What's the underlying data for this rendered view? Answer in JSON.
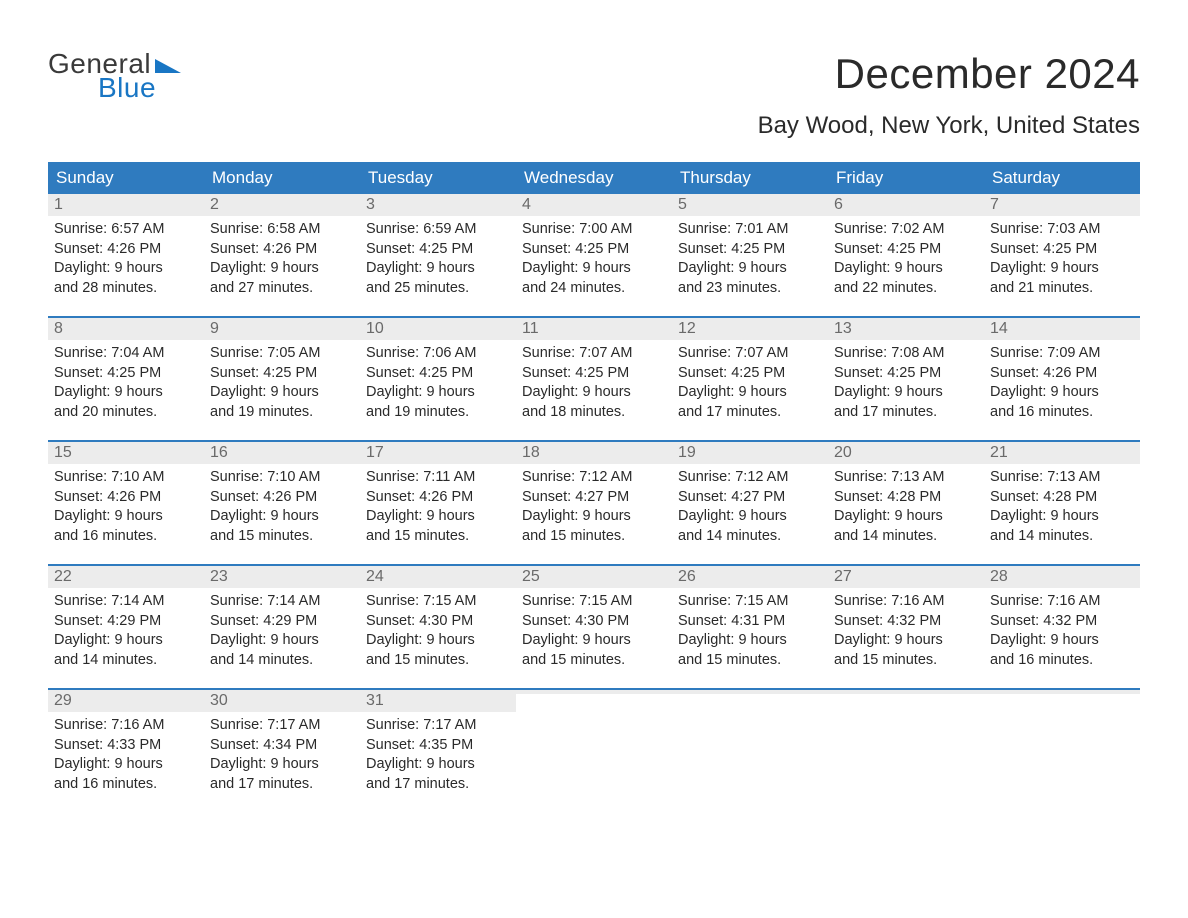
{
  "logo": {
    "text_general": "General",
    "text_blue": "Blue",
    "flag_color": "#1976c4"
  },
  "title": "December 2024",
  "location": "Bay Wood, New York, United States",
  "colors": {
    "header_bg": "#2f7bbf",
    "header_text": "#ffffff",
    "daynum_bg": "#ececec",
    "daynum_text": "#6a6a6a",
    "week_border": "#2f7bbf",
    "body_text": "#2a2a2a",
    "logo_general": "#3a3a3a",
    "logo_blue": "#1976c4",
    "background": "#ffffff"
  },
  "typography": {
    "title_fontsize": 42,
    "location_fontsize": 24,
    "dayheader_fontsize": 17,
    "daynum_fontsize": 16,
    "body_fontsize": 14.5,
    "logo_fontsize": 28
  },
  "day_headers": [
    "Sunday",
    "Monday",
    "Tuesday",
    "Wednesday",
    "Thursday",
    "Friday",
    "Saturday"
  ],
  "weeks": [
    [
      {
        "n": "1",
        "sr": "6:57 AM",
        "ss": "4:26 PM",
        "dl1": "Daylight: 9 hours",
        "dl2": "and 28 minutes."
      },
      {
        "n": "2",
        "sr": "6:58 AM",
        "ss": "4:26 PM",
        "dl1": "Daylight: 9 hours",
        "dl2": "and 27 minutes."
      },
      {
        "n": "3",
        "sr": "6:59 AM",
        "ss": "4:25 PM",
        "dl1": "Daylight: 9 hours",
        "dl2": "and 25 minutes."
      },
      {
        "n": "4",
        "sr": "7:00 AM",
        "ss": "4:25 PM",
        "dl1": "Daylight: 9 hours",
        "dl2": "and 24 minutes."
      },
      {
        "n": "5",
        "sr": "7:01 AM",
        "ss": "4:25 PM",
        "dl1": "Daylight: 9 hours",
        "dl2": "and 23 minutes."
      },
      {
        "n": "6",
        "sr": "7:02 AM",
        "ss": "4:25 PM",
        "dl1": "Daylight: 9 hours",
        "dl2": "and 22 minutes."
      },
      {
        "n": "7",
        "sr": "7:03 AM",
        "ss": "4:25 PM",
        "dl1": "Daylight: 9 hours",
        "dl2": "and 21 minutes."
      }
    ],
    [
      {
        "n": "8",
        "sr": "7:04 AM",
        "ss": "4:25 PM",
        "dl1": "Daylight: 9 hours",
        "dl2": "and 20 minutes."
      },
      {
        "n": "9",
        "sr": "7:05 AM",
        "ss": "4:25 PM",
        "dl1": "Daylight: 9 hours",
        "dl2": "and 19 minutes."
      },
      {
        "n": "10",
        "sr": "7:06 AM",
        "ss": "4:25 PM",
        "dl1": "Daylight: 9 hours",
        "dl2": "and 19 minutes."
      },
      {
        "n": "11",
        "sr": "7:07 AM",
        "ss": "4:25 PM",
        "dl1": "Daylight: 9 hours",
        "dl2": "and 18 minutes."
      },
      {
        "n": "12",
        "sr": "7:07 AM",
        "ss": "4:25 PM",
        "dl1": "Daylight: 9 hours",
        "dl2": "and 17 minutes."
      },
      {
        "n": "13",
        "sr": "7:08 AM",
        "ss": "4:25 PM",
        "dl1": "Daylight: 9 hours",
        "dl2": "and 17 minutes."
      },
      {
        "n": "14",
        "sr": "7:09 AM",
        "ss": "4:26 PM",
        "dl1": "Daylight: 9 hours",
        "dl2": "and 16 minutes."
      }
    ],
    [
      {
        "n": "15",
        "sr": "7:10 AM",
        "ss": "4:26 PM",
        "dl1": "Daylight: 9 hours",
        "dl2": "and 16 minutes."
      },
      {
        "n": "16",
        "sr": "7:10 AM",
        "ss": "4:26 PM",
        "dl1": "Daylight: 9 hours",
        "dl2": "and 15 minutes."
      },
      {
        "n": "17",
        "sr": "7:11 AM",
        "ss": "4:26 PM",
        "dl1": "Daylight: 9 hours",
        "dl2": "and 15 minutes."
      },
      {
        "n": "18",
        "sr": "7:12 AM",
        "ss": "4:27 PM",
        "dl1": "Daylight: 9 hours",
        "dl2": "and 15 minutes."
      },
      {
        "n": "19",
        "sr": "7:12 AM",
        "ss": "4:27 PM",
        "dl1": "Daylight: 9 hours",
        "dl2": "and 14 minutes."
      },
      {
        "n": "20",
        "sr": "7:13 AM",
        "ss": "4:28 PM",
        "dl1": "Daylight: 9 hours",
        "dl2": "and 14 minutes."
      },
      {
        "n": "21",
        "sr": "7:13 AM",
        "ss": "4:28 PM",
        "dl1": "Daylight: 9 hours",
        "dl2": "and 14 minutes."
      }
    ],
    [
      {
        "n": "22",
        "sr": "7:14 AM",
        "ss": "4:29 PM",
        "dl1": "Daylight: 9 hours",
        "dl2": "and 14 minutes."
      },
      {
        "n": "23",
        "sr": "7:14 AM",
        "ss": "4:29 PM",
        "dl1": "Daylight: 9 hours",
        "dl2": "and 14 minutes."
      },
      {
        "n": "24",
        "sr": "7:15 AM",
        "ss": "4:30 PM",
        "dl1": "Daylight: 9 hours",
        "dl2": "and 15 minutes."
      },
      {
        "n": "25",
        "sr": "7:15 AM",
        "ss": "4:30 PM",
        "dl1": "Daylight: 9 hours",
        "dl2": "and 15 minutes."
      },
      {
        "n": "26",
        "sr": "7:15 AM",
        "ss": "4:31 PM",
        "dl1": "Daylight: 9 hours",
        "dl2": "and 15 minutes."
      },
      {
        "n": "27",
        "sr": "7:16 AM",
        "ss": "4:32 PM",
        "dl1": "Daylight: 9 hours",
        "dl2": "and 15 minutes."
      },
      {
        "n": "28",
        "sr": "7:16 AM",
        "ss": "4:32 PM",
        "dl1": "Daylight: 9 hours",
        "dl2": "and 16 minutes."
      }
    ],
    [
      {
        "n": "29",
        "sr": "7:16 AM",
        "ss": "4:33 PM",
        "dl1": "Daylight: 9 hours",
        "dl2": "and 16 minutes."
      },
      {
        "n": "30",
        "sr": "7:17 AM",
        "ss": "4:34 PM",
        "dl1": "Daylight: 9 hours",
        "dl2": "and 17 minutes."
      },
      {
        "n": "31",
        "sr": "7:17 AM",
        "ss": "4:35 PM",
        "dl1": "Daylight: 9 hours",
        "dl2": "and 17 minutes."
      },
      {
        "empty": true
      },
      {
        "empty": true
      },
      {
        "empty": true
      },
      {
        "empty": true
      }
    ]
  ],
  "labels": {
    "sunrise_prefix": "Sunrise: ",
    "sunset_prefix": "Sunset: "
  }
}
